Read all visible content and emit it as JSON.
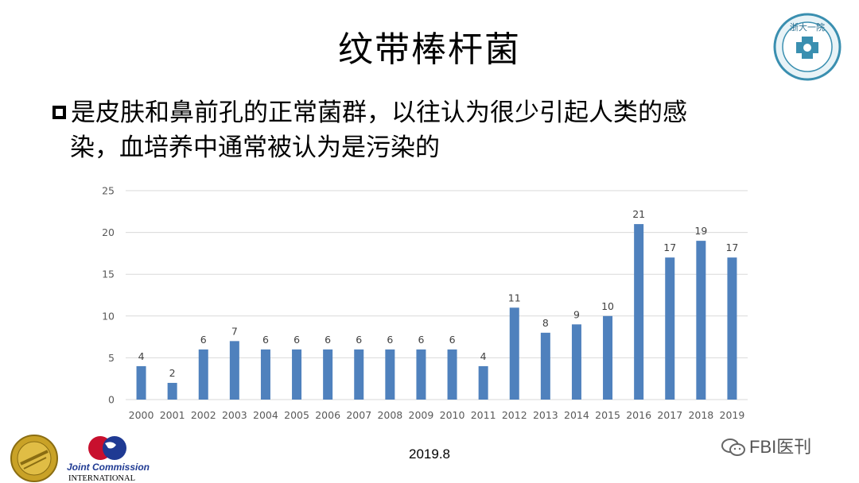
{
  "slide": {
    "title": "纹带棒杆菌",
    "bullet_line1": "是皮肤和鼻前孔的正常菌群，以往认为很少引起人类的感",
    "bullet_line2": "染，血培养中通常被认为是污染的",
    "date": "2019.8"
  },
  "logos": {
    "top_right": "浙大一院",
    "joint_commission_line1": "Joint Commission",
    "joint_commission_line2": "INTERNATIONAL"
  },
  "watermark": "FBI医刊",
  "colors": {
    "bar": "#4f81bd",
    "grid": "#d9d9d9",
    "axis_text": "#595959"
  },
  "chart_data": {
    "type": "bar",
    "categories": [
      "2000",
      "2001",
      "2002",
      "2003",
      "2004",
      "2005",
      "2006",
      "2007",
      "2008",
      "2009",
      "2010",
      "2011",
      "2012",
      "2013",
      "2014",
      "2015",
      "2016",
      "2017",
      "2018",
      "2019"
    ],
    "values": [
      4,
      2,
      6,
      7,
      6,
      6,
      6,
      6,
      6,
      6,
      6,
      4,
      11,
      8,
      9,
      10,
      21,
      17,
      19,
      17
    ],
    "yticks": [
      "0",
      "5",
      "10",
      "15",
      "20",
      "25"
    ],
    "ylim": [
      0,
      25
    ],
    "data_labels": true,
    "grid": true,
    "title": "",
    "xlabel": "",
    "ylabel": ""
  }
}
